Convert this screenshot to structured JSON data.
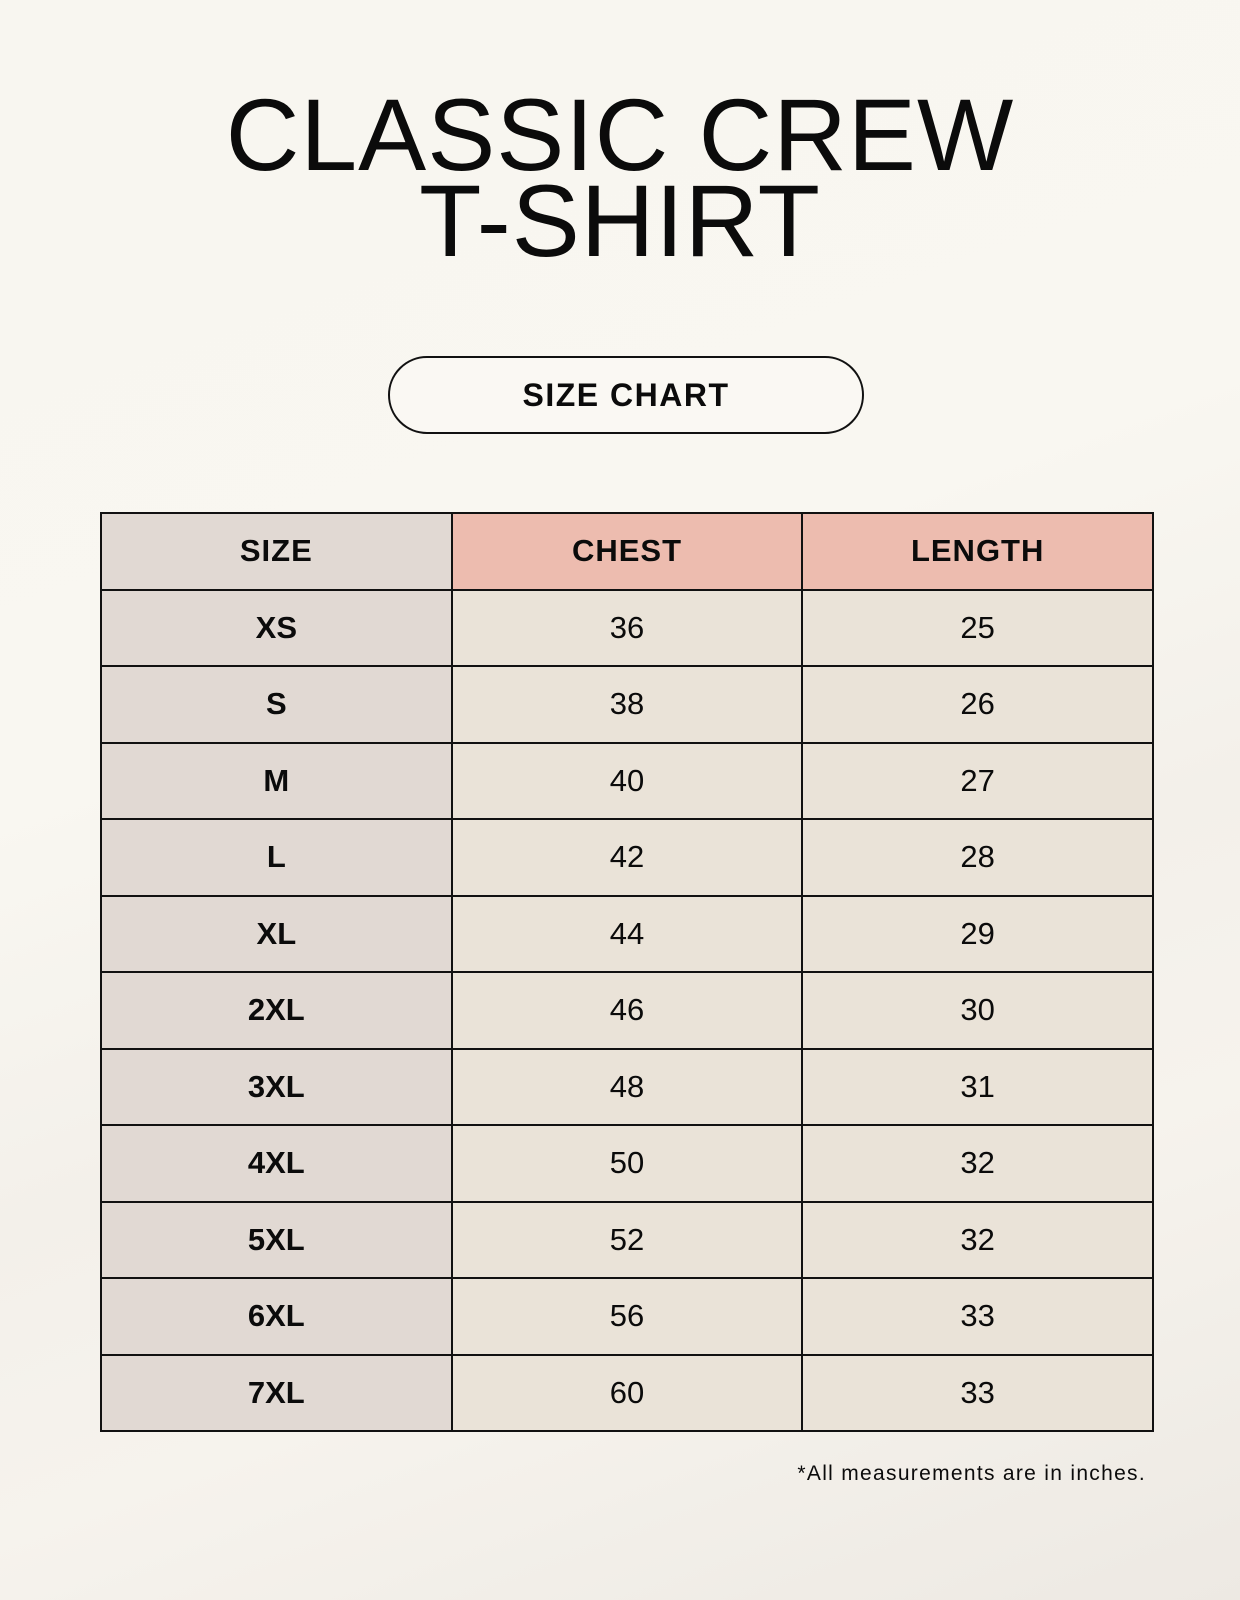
{
  "title": {
    "line1": "CLASSIC CREW",
    "line2": "T-SHIRT"
  },
  "badge": "SIZE CHART",
  "table": {
    "headers": [
      "SIZE",
      "CHEST",
      "LENGTH"
    ],
    "rows": [
      [
        "XS",
        "36",
        "25"
      ],
      [
        "S",
        "38",
        "26"
      ],
      [
        "M",
        "40",
        "27"
      ],
      [
        "L",
        "42",
        "28"
      ],
      [
        "XL",
        "44",
        "29"
      ],
      [
        "2XL",
        "46",
        "30"
      ],
      [
        "3XL",
        "48",
        "31"
      ],
      [
        "4XL",
        "50",
        "32"
      ],
      [
        "5XL",
        "52",
        "32"
      ],
      [
        "6XL",
        "56",
        "33"
      ],
      [
        "7XL",
        "60",
        "33"
      ]
    ]
  },
  "note": "*All measurements are in inches.",
  "colors": {
    "header_accent": "#edbcaf",
    "size_column": "#e1d9d3",
    "value_cells": "#eae3d8"
  }
}
